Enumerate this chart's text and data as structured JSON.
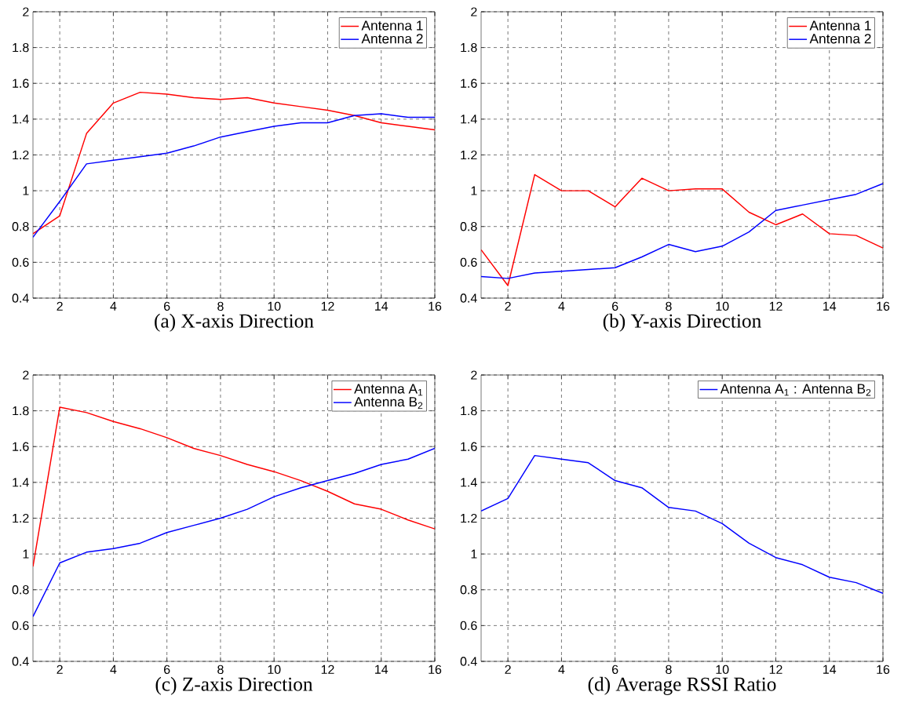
{
  "chart_data": [
    {
      "type": "line",
      "xlabel": "(a) X-axis Direction",
      "x": [
        1,
        2,
        3,
        4,
        5,
        6,
        7,
        8,
        9,
        10,
        11,
        12,
        13,
        14,
        15,
        16
      ],
      "xlim": [
        1,
        16
      ],
      "xticks": [
        2,
        4,
        6,
        8,
        10,
        12,
        14,
        16
      ],
      "ylim": [
        0.4,
        2
      ],
      "yticks": [
        0.4,
        0.6,
        0.8,
        1,
        1.2,
        1.4,
        1.6,
        1.8,
        2
      ],
      "grid": true,
      "legend": "top right",
      "line_style": "solid",
      "marker": "none",
      "series": [
        {
          "name": "Antenna 1",
          "color": "#ff0000",
          "values": [
            0.76,
            0.86,
            1.32,
            1.49,
            1.55,
            1.54,
            1.52,
            1.51,
            1.52,
            1.49,
            1.47,
            1.45,
            1.42,
            1.38,
            1.36,
            1.34
          ]
        },
        {
          "name": "Antenna 2",
          "color": "#0000ff",
          "values": [
            0.74,
            0.94,
            1.15,
            1.17,
            1.19,
            1.21,
            1.25,
            1.3,
            1.33,
            1.36,
            1.38,
            1.38,
            1.42,
            1.43,
            1.41,
            1.41
          ]
        }
      ]
    },
    {
      "type": "line",
      "xlabel": "(b) Y-axis Direction",
      "x": [
        1,
        2,
        3,
        4,
        5,
        6,
        7,
        8,
        9,
        10,
        11,
        12,
        13,
        14,
        15,
        16
      ],
      "xlim": [
        1,
        16
      ],
      "xticks": [
        2,
        4,
        6,
        8,
        10,
        12,
        14,
        16
      ],
      "ylim": [
        0.4,
        2
      ],
      "yticks": [
        0.4,
        0.6,
        0.8,
        1,
        1.2,
        1.4,
        1.6,
        1.8,
        2
      ],
      "grid": true,
      "legend": "top right",
      "line_style": "solid",
      "marker": "none",
      "series": [
        {
          "name": "Antenna 1",
          "color": "#ff0000",
          "values": [
            0.67,
            0.47,
            1.09,
            1.0,
            1.0,
            0.91,
            1.07,
            1.0,
            1.01,
            1.01,
            0.88,
            0.81,
            0.87,
            0.76,
            0.75,
            0.68
          ]
        },
        {
          "name": "Antenna 2",
          "color": "#0000ff",
          "values": [
            0.52,
            0.51,
            0.54,
            0.55,
            0.56,
            0.57,
            0.63,
            0.7,
            0.66,
            0.69,
            0.77,
            0.89,
            0.92,
            0.95,
            0.98,
            1.04
          ]
        }
      ]
    },
    {
      "type": "line",
      "xlabel": "(c) Z-axis Direction",
      "x": [
        1,
        2,
        3,
        4,
        5,
        6,
        7,
        8,
        9,
        10,
        11,
        12,
        13,
        14,
        15,
        16
      ],
      "xlim": [
        1,
        16
      ],
      "xticks": [
        2,
        4,
        6,
        8,
        10,
        12,
        14,
        16
      ],
      "ylim": [
        0.4,
        2
      ],
      "yticks": [
        0.4,
        0.6,
        0.8,
        1,
        1.2,
        1.4,
        1.6,
        1.8,
        2
      ],
      "grid": true,
      "legend": "top right",
      "line_style": "solid",
      "marker": "none",
      "series": [
        {
          "name": "Antenna A$_{1}$",
          "color": "#ff0000",
          "values": [
            0.93,
            1.82,
            1.79,
            1.74,
            1.7,
            1.65,
            1.59,
            1.55,
            1.5,
            1.46,
            1.41,
            1.35,
            1.28,
            1.25,
            1.19,
            1.14
          ]
        },
        {
          "name": "Antenna B$_{2}$",
          "color": "#0000ff",
          "values": [
            0.65,
            0.95,
            1.01,
            1.03,
            1.06,
            1.12,
            1.16,
            1.2,
            1.25,
            1.32,
            1.37,
            1.41,
            1.45,
            1.5,
            1.53,
            1.59
          ]
        }
      ]
    },
    {
      "type": "line",
      "xlabel": "(d) Average RSSI Ratio",
      "x": [
        1,
        2,
        3,
        4,
        5,
        6,
        7,
        8,
        9,
        10,
        11,
        12,
        13,
        14,
        15,
        16
      ],
      "xlim": [
        1,
        16
      ],
      "xticks": [
        2,
        4,
        6,
        8,
        10,
        12,
        14,
        16
      ],
      "ylim": [
        0.4,
        2
      ],
      "yticks": [
        0.4,
        0.6,
        0.8,
        1,
        1.2,
        1.4,
        1.6,
        1.8,
        2
      ],
      "grid": true,
      "legend": "top right",
      "line_style": "solid",
      "marker": "none",
      "series": [
        {
          "name": "Antenna A$_{1}$ : Antenna B$_{2}$",
          "color": "#0000ff",
          "values": [
            1.24,
            1.31,
            1.55,
            1.53,
            1.51,
            1.41,
            1.37,
            1.26,
            1.24,
            1.17,
            1.06,
            0.98,
            0.94,
            0.87,
            0.84,
            0.78
          ]
        }
      ]
    }
  ]
}
